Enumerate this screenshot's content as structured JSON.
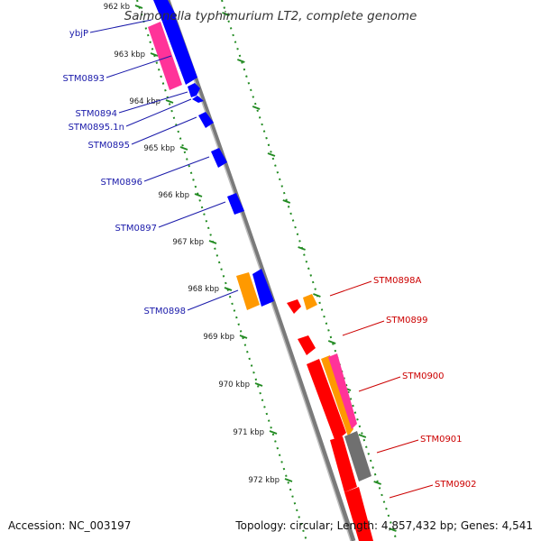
{
  "title": "Salmonella typhimurium LT2, complete genome",
  "footer": {
    "accession": "Accession: NC_003197",
    "topology": "Topology: circular; Length: 4,857,432 bp; Genes: 4,541"
  },
  "colors": {
    "plus_strand": "#0000ff",
    "minus_strand": "#ff0000",
    "magenta": "#ff3399",
    "orange": "#ff9900",
    "gray": "#707070",
    "tick": "#228b22",
    "left_label": "#1a1aaa",
    "right_label": "#cc0000"
  },
  "ticks": [
    {
      "label": "962 kb"
    },
    {
      "label": "963 kbp"
    },
    {
      "label": "964 kbp"
    },
    {
      "label": "965 kbp"
    },
    {
      "label": "966 kbp"
    },
    {
      "label": "967 kbp"
    },
    {
      "label": "968 kbp"
    },
    {
      "label": "969 kbp"
    },
    {
      "label": "970 kbp"
    },
    {
      "label": "971 kbp"
    },
    {
      "label": "972 kbp"
    }
  ],
  "left_genes": [
    {
      "label": "ybjP"
    },
    {
      "label": "STM0893"
    },
    {
      "label": "STM0894"
    },
    {
      "label": "STM0895.1n"
    },
    {
      "label": "STM0895"
    },
    {
      "label": "STM0896"
    },
    {
      "label": "STM0897"
    },
    {
      "label": "STM0898"
    }
  ],
  "right_genes": [
    {
      "label": "STM0898A"
    },
    {
      "label": "STM0899"
    },
    {
      "label": "STM0900"
    },
    {
      "label": "STM0901"
    },
    {
      "label": "STM0902"
    }
  ]
}
